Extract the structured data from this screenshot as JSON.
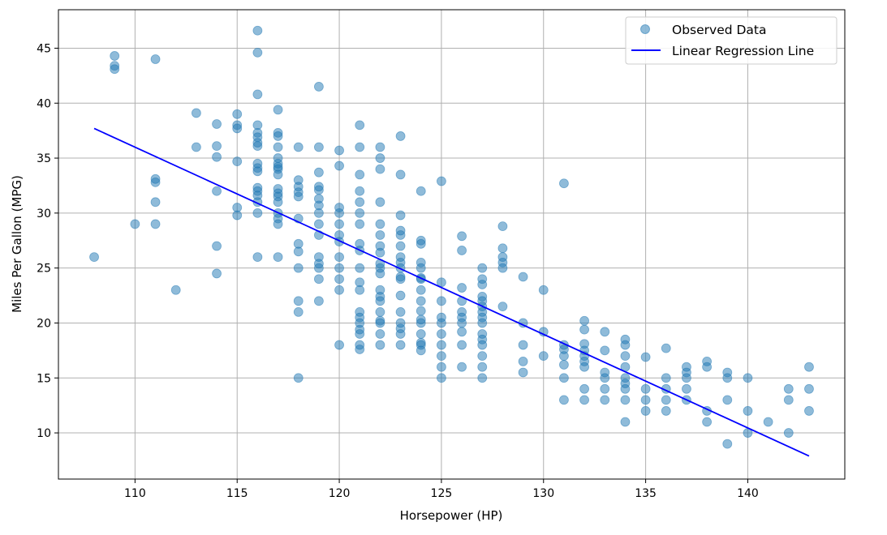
{
  "chart_data": {
    "type": "scatter",
    "xlabel": "Horsepower (HP)",
    "ylabel": "Miles Per Gallon (MPG)",
    "xlim": [
      106.25,
      144.75
    ],
    "ylim": [
      5.8,
      48.5
    ],
    "xticks": [
      110,
      115,
      120,
      125,
      130,
      135,
      140
    ],
    "yticks": [
      10,
      15,
      20,
      25,
      30,
      35,
      40,
      45
    ],
    "grid": true,
    "legend_position": "top-right",
    "colors": {
      "points": "#1f77b4",
      "line": "#0000ff",
      "grid": "#b0b0b0"
    },
    "series": [
      {
        "name": "Observed Data",
        "kind": "scatter",
        "points": [
          [
            108,
            26
          ],
          [
            109,
            44.3
          ],
          [
            109,
            43.4
          ],
          [
            109,
            43.1
          ],
          [
            110,
            29
          ],
          [
            111,
            44
          ],
          [
            111,
            33.1
          ],
          [
            111,
            32.8
          ],
          [
            111,
            31
          ],
          [
            111,
            29
          ],
          [
            112,
            23
          ],
          [
            113,
            39.1
          ],
          [
            113,
            36
          ],
          [
            114,
            38.1
          ],
          [
            114,
            36.1
          ],
          [
            114,
            35.1
          ],
          [
            114,
            32
          ],
          [
            114,
            27
          ],
          [
            114,
            24.5
          ],
          [
            115,
            39
          ],
          [
            115,
            38
          ],
          [
            115,
            37.7
          ],
          [
            115,
            34.7
          ],
          [
            115,
            30.5
          ],
          [
            115,
            29.8
          ],
          [
            116,
            46.6
          ],
          [
            116,
            44.6
          ],
          [
            116,
            40.8
          ],
          [
            116,
            38
          ],
          [
            116,
            37.3
          ],
          [
            116,
            36.9
          ],
          [
            116,
            36.4
          ],
          [
            116,
            36.1
          ],
          [
            116,
            34.5
          ],
          [
            116,
            34.1
          ],
          [
            116,
            33.8
          ],
          [
            116,
            32.3
          ],
          [
            116,
            32
          ],
          [
            116,
            31.6
          ],
          [
            116,
            31
          ],
          [
            116,
            30
          ],
          [
            116,
            26
          ],
          [
            117,
            39.4
          ],
          [
            117,
            37.3
          ],
          [
            117,
            37
          ],
          [
            117,
            36
          ],
          [
            117,
            35
          ],
          [
            117,
            34.5
          ],
          [
            117,
            34.2
          ],
          [
            117,
            34
          ],
          [
            117,
            33.5
          ],
          [
            117,
            32.2
          ],
          [
            117,
            31.8
          ],
          [
            117,
            31.5
          ],
          [
            117,
            31
          ],
          [
            117,
            30
          ],
          [
            117,
            29.5
          ],
          [
            117,
            29
          ],
          [
            117,
            26
          ],
          [
            118,
            36
          ],
          [
            118,
            33
          ],
          [
            118,
            32.4
          ],
          [
            118,
            31.9
          ],
          [
            118,
            31.5
          ],
          [
            118,
            29.5
          ],
          [
            118,
            27.2
          ],
          [
            118,
            26.5
          ],
          [
            118,
            25
          ],
          [
            118,
            22
          ],
          [
            118,
            21
          ],
          [
            118,
            15
          ],
          [
            119,
            41.5
          ],
          [
            119,
            36
          ],
          [
            119,
            33.7
          ],
          [
            119,
            32.4
          ],
          [
            119,
            32.1
          ],
          [
            119,
            31.3
          ],
          [
            119,
            30.7
          ],
          [
            119,
            30
          ],
          [
            119,
            29
          ],
          [
            119,
            28
          ],
          [
            119,
            26
          ],
          [
            119,
            25.4
          ],
          [
            119,
            25
          ],
          [
            119,
            24
          ],
          [
            119,
            22
          ],
          [
            120,
            35.7
          ],
          [
            120,
            34.3
          ],
          [
            120,
            30.5
          ],
          [
            120,
            30
          ],
          [
            120,
            29
          ],
          [
            120,
            28
          ],
          [
            120,
            27.4
          ],
          [
            120,
            26
          ],
          [
            120,
            25
          ],
          [
            120,
            24
          ],
          [
            120,
            23
          ],
          [
            120,
            18
          ],
          [
            121,
            38
          ],
          [
            121,
            36
          ],
          [
            121,
            33.5
          ],
          [
            121,
            32
          ],
          [
            121,
            31
          ],
          [
            121,
            30
          ],
          [
            121,
            29
          ],
          [
            121,
            27.2
          ],
          [
            121,
            26.6
          ],
          [
            121,
            25
          ],
          [
            121,
            23.7
          ],
          [
            121,
            23
          ],
          [
            121,
            21
          ],
          [
            121,
            20.5
          ],
          [
            121,
            20
          ],
          [
            121,
            19.4
          ],
          [
            121,
            19
          ],
          [
            121,
            18
          ],
          [
            121,
            17.6
          ],
          [
            122,
            36
          ],
          [
            122,
            35
          ],
          [
            122,
            34
          ],
          [
            122,
            31
          ],
          [
            122,
            29
          ],
          [
            122,
            28
          ],
          [
            122,
            27
          ],
          [
            122,
            26.4
          ],
          [
            122,
            25.4
          ],
          [
            122,
            25
          ],
          [
            122,
            24.5
          ],
          [
            122,
            23
          ],
          [
            122,
            22.4
          ],
          [
            122,
            22
          ],
          [
            122,
            21
          ],
          [
            122,
            20.2
          ],
          [
            122,
            20
          ],
          [
            122,
            19
          ],
          [
            122,
            18
          ],
          [
            123,
            37
          ],
          [
            123,
            33.5
          ],
          [
            123,
            29.8
          ],
          [
            123,
            28.4
          ],
          [
            123,
            28
          ],
          [
            123,
            27
          ],
          [
            123,
            26
          ],
          [
            123,
            25.5
          ],
          [
            123,
            25
          ],
          [
            123,
            24.2
          ],
          [
            123,
            24
          ],
          [
            123,
            22.5
          ],
          [
            123,
            21
          ],
          [
            123,
            20
          ],
          [
            123,
            19.5
          ],
          [
            123,
            19
          ],
          [
            123,
            18
          ],
          [
            124,
            32
          ],
          [
            124,
            27.5
          ],
          [
            124,
            27.2
          ],
          [
            124,
            25.5
          ],
          [
            124,
            25
          ],
          [
            124,
            24.1
          ],
          [
            124,
            24
          ],
          [
            124,
            23
          ],
          [
            124,
            22
          ],
          [
            124,
            21.1
          ],
          [
            124,
            20.3
          ],
          [
            124,
            20
          ],
          [
            124,
            19
          ],
          [
            124,
            18.2
          ],
          [
            124,
            18
          ],
          [
            124,
            17.5
          ],
          [
            125,
            32.9
          ],
          [
            125,
            23.7
          ],
          [
            125,
            22
          ],
          [
            125,
            20.5
          ],
          [
            125,
            20
          ],
          [
            125,
            19
          ],
          [
            125,
            18
          ],
          [
            125,
            17
          ],
          [
            125,
            16
          ],
          [
            125,
            15
          ],
          [
            126,
            27.9
          ],
          [
            126,
            26.6
          ],
          [
            126,
            23.2
          ],
          [
            126,
            22
          ],
          [
            126,
            21
          ],
          [
            126,
            20.5
          ],
          [
            126,
            20
          ],
          [
            126,
            19.2
          ],
          [
            126,
            18
          ],
          [
            126,
            16
          ],
          [
            127,
            25
          ],
          [
            127,
            24
          ],
          [
            127,
            23.5
          ],
          [
            127,
            22.4
          ],
          [
            127,
            22
          ],
          [
            127,
            21.5
          ],
          [
            127,
            21
          ],
          [
            127,
            20.5
          ],
          [
            127,
            20
          ],
          [
            127,
            19
          ],
          [
            127,
            18.5
          ],
          [
            127,
            18
          ],
          [
            127,
            17
          ],
          [
            127,
            16
          ],
          [
            127,
            15
          ],
          [
            128,
            28.8
          ],
          [
            128,
            26.8
          ],
          [
            128,
            26
          ],
          [
            128,
            25.5
          ],
          [
            128,
            25
          ],
          [
            128,
            21.5
          ],
          [
            129,
            24.2
          ],
          [
            129,
            20
          ],
          [
            129,
            18
          ],
          [
            129,
            16.5
          ],
          [
            129,
            15.5
          ],
          [
            130,
            23
          ],
          [
            130,
            19.2
          ],
          [
            130,
            17
          ],
          [
            131,
            32.7
          ],
          [
            131,
            18
          ],
          [
            131,
            17.6
          ],
          [
            131,
            17
          ],
          [
            131,
            16.2
          ],
          [
            131,
            15
          ],
          [
            131,
            13
          ],
          [
            132,
            20.2
          ],
          [
            132,
            19.4
          ],
          [
            132,
            18.1
          ],
          [
            132,
            17.5
          ],
          [
            132,
            17
          ],
          [
            132,
            16.5
          ],
          [
            132,
            16
          ],
          [
            132,
            14
          ],
          [
            132,
            13
          ],
          [
            133,
            19.2
          ],
          [
            133,
            17.5
          ],
          [
            133,
            15.5
          ],
          [
            133,
            15
          ],
          [
            133,
            14
          ],
          [
            133,
            13
          ],
          [
            134,
            18.5
          ],
          [
            134,
            18
          ],
          [
            134,
            17
          ],
          [
            134,
            16
          ],
          [
            134,
            15
          ],
          [
            134,
            14.5
          ],
          [
            134,
            14
          ],
          [
            134,
            13
          ],
          [
            134,
            11
          ],
          [
            135,
            16.9
          ],
          [
            135,
            14
          ],
          [
            135,
            13
          ],
          [
            135,
            12
          ],
          [
            136,
            17.7
          ],
          [
            136,
            15
          ],
          [
            136,
            14
          ],
          [
            136,
            13
          ],
          [
            136,
            12
          ],
          [
            137,
            16
          ],
          [
            137,
            15.5
          ],
          [
            137,
            15
          ],
          [
            137,
            14
          ],
          [
            137,
            13
          ],
          [
            138,
            16.5
          ],
          [
            138,
            16
          ],
          [
            138,
            12
          ],
          [
            138,
            11
          ],
          [
            139,
            15.5
          ],
          [
            139,
            15
          ],
          [
            139,
            13
          ],
          [
            139,
            9
          ],
          [
            140,
            15
          ],
          [
            140,
            12
          ],
          [
            140,
            10
          ],
          [
            141,
            11
          ],
          [
            142,
            14
          ],
          [
            142,
            13
          ],
          [
            142,
            10
          ],
          [
            143,
            16
          ],
          [
            143,
            14
          ],
          [
            143,
            12
          ]
        ]
      },
      {
        "name": "Linear Regression Line",
        "kind": "line",
        "points": [
          [
            108,
            37.7
          ],
          [
            143,
            7.9
          ]
        ]
      }
    ]
  }
}
